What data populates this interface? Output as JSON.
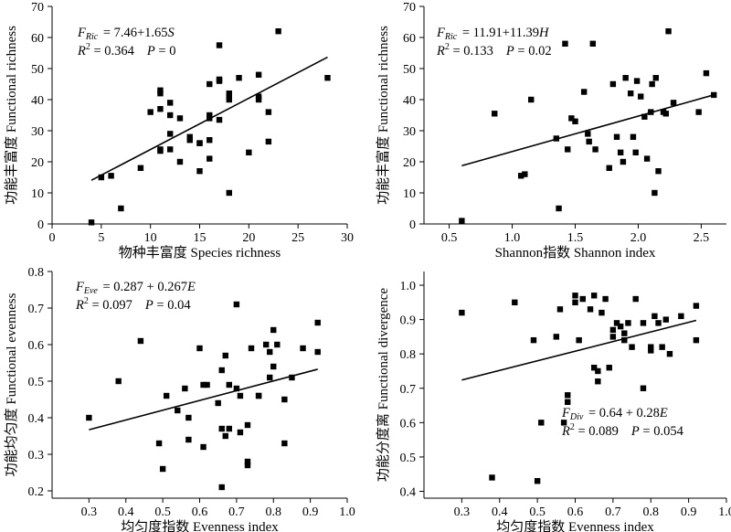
{
  "chart_data": [
    {
      "type": "scatter",
      "panel": "top-left",
      "xlabel": "物种丰富度 Species richness",
      "ylabel": "功能丰富度 Functional richness",
      "xlim": [
        0,
        30
      ],
      "ylim": [
        0,
        70
      ],
      "xticks": [
        0,
        5,
        10,
        15,
        20,
        25,
        30
      ],
      "yticks": [
        0,
        10,
        20,
        30,
        40,
        50,
        60,
        70
      ],
      "x_tick_labels": [
        "0",
        "5",
        "10",
        "15",
        "20",
        "25",
        "30"
      ],
      "y_tick_labels": [
        "0",
        "10",
        "20",
        "30",
        "40",
        "50",
        "60",
        "70"
      ],
      "grid": false,
      "annotation": {
        "lhs": "F",
        "sub": "Ric",
        "eq": "= 7.46+1.65",
        "var": "S",
        "r2": "= 0.364",
        "p": "= 0"
      },
      "regression": {
        "intercept": 7.46,
        "slope": 1.65,
        "x_range": [
          4,
          28
        ]
      },
      "series": [
        {
          "x": [
            4,
            5,
            6,
            7,
            9,
            10,
            11,
            11,
            11,
            11,
            11,
            12,
            12,
            12,
            12,
            13,
            13,
            14,
            14,
            15,
            15,
            15,
            16,
            16,
            16,
            16,
            16,
            17,
            17,
            17,
            17,
            18,
            18,
            18,
            18,
            19,
            20,
            21,
            21,
            21,
            22,
            22,
            23,
            28
          ],
          "y": [
            0.5,
            15,
            15.5,
            5,
            18,
            36,
            42,
            43,
            24,
            23.5,
            37,
            24,
            35,
            29,
            39,
            34,
            20,
            27,
            28,
            17,
            26,
            26,
            34,
            35,
            21,
            27,
            45,
            57.5,
            46.5,
            33.5,
            46,
            40,
            42,
            41,
            10,
            47,
            23,
            48,
            40,
            41,
            36,
            26.5,
            62,
            47
          ]
        }
      ]
    },
    {
      "type": "scatter",
      "panel": "top-right",
      "xlabel": "Shannon指数 Shannon index",
      "ylabel": "功能丰富度 Functional richness",
      "xlim": [
        0.3,
        2.7
      ],
      "ylim": [
        0,
        70
      ],
      "xticks": [
        0.5,
        1.0,
        1.5,
        2.0,
        2.5
      ],
      "yticks": [
        0,
        10,
        20,
        30,
        40,
        50,
        60,
        70
      ],
      "x_tick_labels": [
        "0.5",
        "1.0",
        "1.5",
        "2.0",
        "2.5"
      ],
      "y_tick_labels": [
        "0",
        "10",
        "20",
        "30",
        "40",
        "50",
        "60",
        "70"
      ],
      "grid": false,
      "annotation": {
        "lhs": "F",
        "sub": "Ric",
        "eq": "= 11.91+11.39",
        "var": "H",
        "r2": "= 0.133",
        "p": "= 0.02"
      },
      "regression": {
        "intercept": 11.91,
        "slope": 11.39,
        "x_range": [
          0.6,
          2.6
        ]
      },
      "series": [
        {
          "x": [
            0.6,
            0.86,
            1.07,
            1.1,
            1.15,
            1.35,
            1.37,
            1.42,
            1.44,
            1.47,
            1.5,
            1.57,
            1.6,
            1.61,
            1.64,
            1.66,
            1.77,
            1.8,
            1.83,
            1.86,
            1.88,
            1.9,
            1.94,
            1.96,
            1.98,
            1.99,
            2.02,
            2.05,
            2.07,
            2.1,
            2.11,
            2.13,
            2.14,
            2.16,
            2.2,
            2.22,
            2.24,
            2.28,
            2.48,
            2.54,
            2.6
          ],
          "y": [
            1,
            35.5,
            15.5,
            16,
            40,
            27.5,
            5,
            58,
            24,
            34,
            33,
            42.5,
            29,
            26.5,
            58,
            24,
            18,
            45,
            28,
            23,
            20,
            47,
            42,
            28,
            23,
            46,
            41,
            34.5,
            21,
            36,
            45,
            10,
            47,
            17,
            36,
            35.5,
            62,
            39,
            36,
            48.5,
            41.5
          ]
        }
      ]
    },
    {
      "type": "scatter",
      "panel": "bottom-left",
      "xlabel": "均匀度指数 Evenness index",
      "ylabel": "功能均匀度 Functional evenness",
      "xlim": [
        0.2,
        1.0
      ],
      "ylim": [
        0.18,
        0.8
      ],
      "xticks": [
        0.3,
        0.4,
        0.5,
        0.6,
        0.7,
        0.8,
        0.9,
        1.0
      ],
      "yticks": [
        0.2,
        0.3,
        0.4,
        0.5,
        0.6,
        0.7,
        0.8
      ],
      "x_tick_labels": [
        "0.3",
        "0.4",
        "0.5",
        "0.6",
        "0.7",
        "0.8",
        "0.9",
        "1.0"
      ],
      "y_tick_labels": [
        "0.2",
        "0.3",
        "0.4",
        "0.5",
        "0.6",
        "0.7",
        "0.8"
      ],
      "grid": false,
      "annotation": {
        "lhs": "F",
        "sub": "Eve",
        "eq": "= 0.287 + 0.267",
        "var": "E",
        "r2": "= 0.097",
        "p": "= 0.04"
      },
      "regression": {
        "intercept": 0.287,
        "slope": 0.267,
        "x_range": [
          0.3,
          0.92
        ]
      },
      "series": [
        {
          "x": [
            0.3,
            0.38,
            0.44,
            0.49,
            0.5,
            0.51,
            0.54,
            0.56,
            0.57,
            0.57,
            0.6,
            0.61,
            0.61,
            0.62,
            0.65,
            0.66,
            0.66,
            0.66,
            0.67,
            0.67,
            0.68,
            0.68,
            0.7,
            0.7,
            0.71,
            0.71,
            0.73,
            0.73,
            0.73,
            0.74,
            0.76,
            0.76,
            0.78,
            0.79,
            0.79,
            0.8,
            0.8,
            0.81,
            0.83,
            0.83,
            0.85,
            0.88,
            0.92,
            0.92
          ],
          "y": [
            0.4,
            0.5,
            0.61,
            0.33,
            0.26,
            0.46,
            0.42,
            0.48,
            0.4,
            0.34,
            0.59,
            0.32,
            0.49,
            0.49,
            0.44,
            0.37,
            0.21,
            0.53,
            0.57,
            0.35,
            0.37,
            0.49,
            0.71,
            0.48,
            0.46,
            0.36,
            0.38,
            0.28,
            0.27,
            0.59,
            0.46,
            0.46,
            0.6,
            0.51,
            0.58,
            0.64,
            0.54,
            0.6,
            0.45,
            0.33,
            0.51,
            0.59,
            0.58,
            0.66
          ]
        }
      ]
    },
    {
      "type": "scatter",
      "panel": "bottom-right",
      "xlabel": "均匀度指数 Evenness index",
      "ylabel": "功能分度离 Functional divergence",
      "xlim": [
        0.2,
        1.0
      ],
      "ylim": [
        0.38,
        1.04
      ],
      "xticks": [
        0.3,
        0.4,
        0.5,
        0.6,
        0.7,
        0.8,
        0.9,
        1.0
      ],
      "yticks": [
        0.4,
        0.5,
        0.6,
        0.7,
        0.8,
        0.9,
        1.0
      ],
      "x_tick_labels": [
        "0.3",
        "0.4",
        "0.5",
        "0.6",
        "0.7",
        "0.8",
        "0.9",
        "1.0"
      ],
      "y_tick_labels": [
        "0.4",
        "0.5",
        "0.6",
        "0.7",
        "0.8",
        "0.9",
        "1.0"
      ],
      "grid": false,
      "annotation": {
        "lhs": "F",
        "sub": "Div",
        "eq": "= 0.64 + 0.28",
        "var": "E",
        "r2": "= 0.089",
        "p": "= 0.054"
      },
      "regression": {
        "intercept": 0.64,
        "slope": 0.28,
        "x_range": [
          0.3,
          0.92
        ]
      },
      "series": [
        {
          "x": [
            0.3,
            0.38,
            0.44,
            0.49,
            0.5,
            0.51,
            0.55,
            0.56,
            0.57,
            0.58,
            0.58,
            0.6,
            0.6,
            0.61,
            0.62,
            0.64,
            0.65,
            0.65,
            0.66,
            0.66,
            0.67,
            0.68,
            0.69,
            0.7,
            0.7,
            0.71,
            0.72,
            0.73,
            0.73,
            0.74,
            0.75,
            0.76,
            0.78,
            0.78,
            0.8,
            0.8,
            0.81,
            0.82,
            0.83,
            0.84,
            0.85,
            0.88,
            0.92,
            0.92
          ],
          "y": [
            0.92,
            0.44,
            0.95,
            0.84,
            0.43,
            0.6,
            0.85,
            0.93,
            0.6,
            0.68,
            0.66,
            0.97,
            0.95,
            0.84,
            0.96,
            0.93,
            0.97,
            0.76,
            0.75,
            0.72,
            0.92,
            0.96,
            0.76,
            0.85,
            0.87,
            0.89,
            0.88,
            0.86,
            0.84,
            0.89,
            0.82,
            0.96,
            0.89,
            0.7,
            0.82,
            0.81,
            0.91,
            0.89,
            0.82,
            0.9,
            0.8,
            0.91,
            0.94,
            0.84
          ]
        }
      ]
    }
  ]
}
